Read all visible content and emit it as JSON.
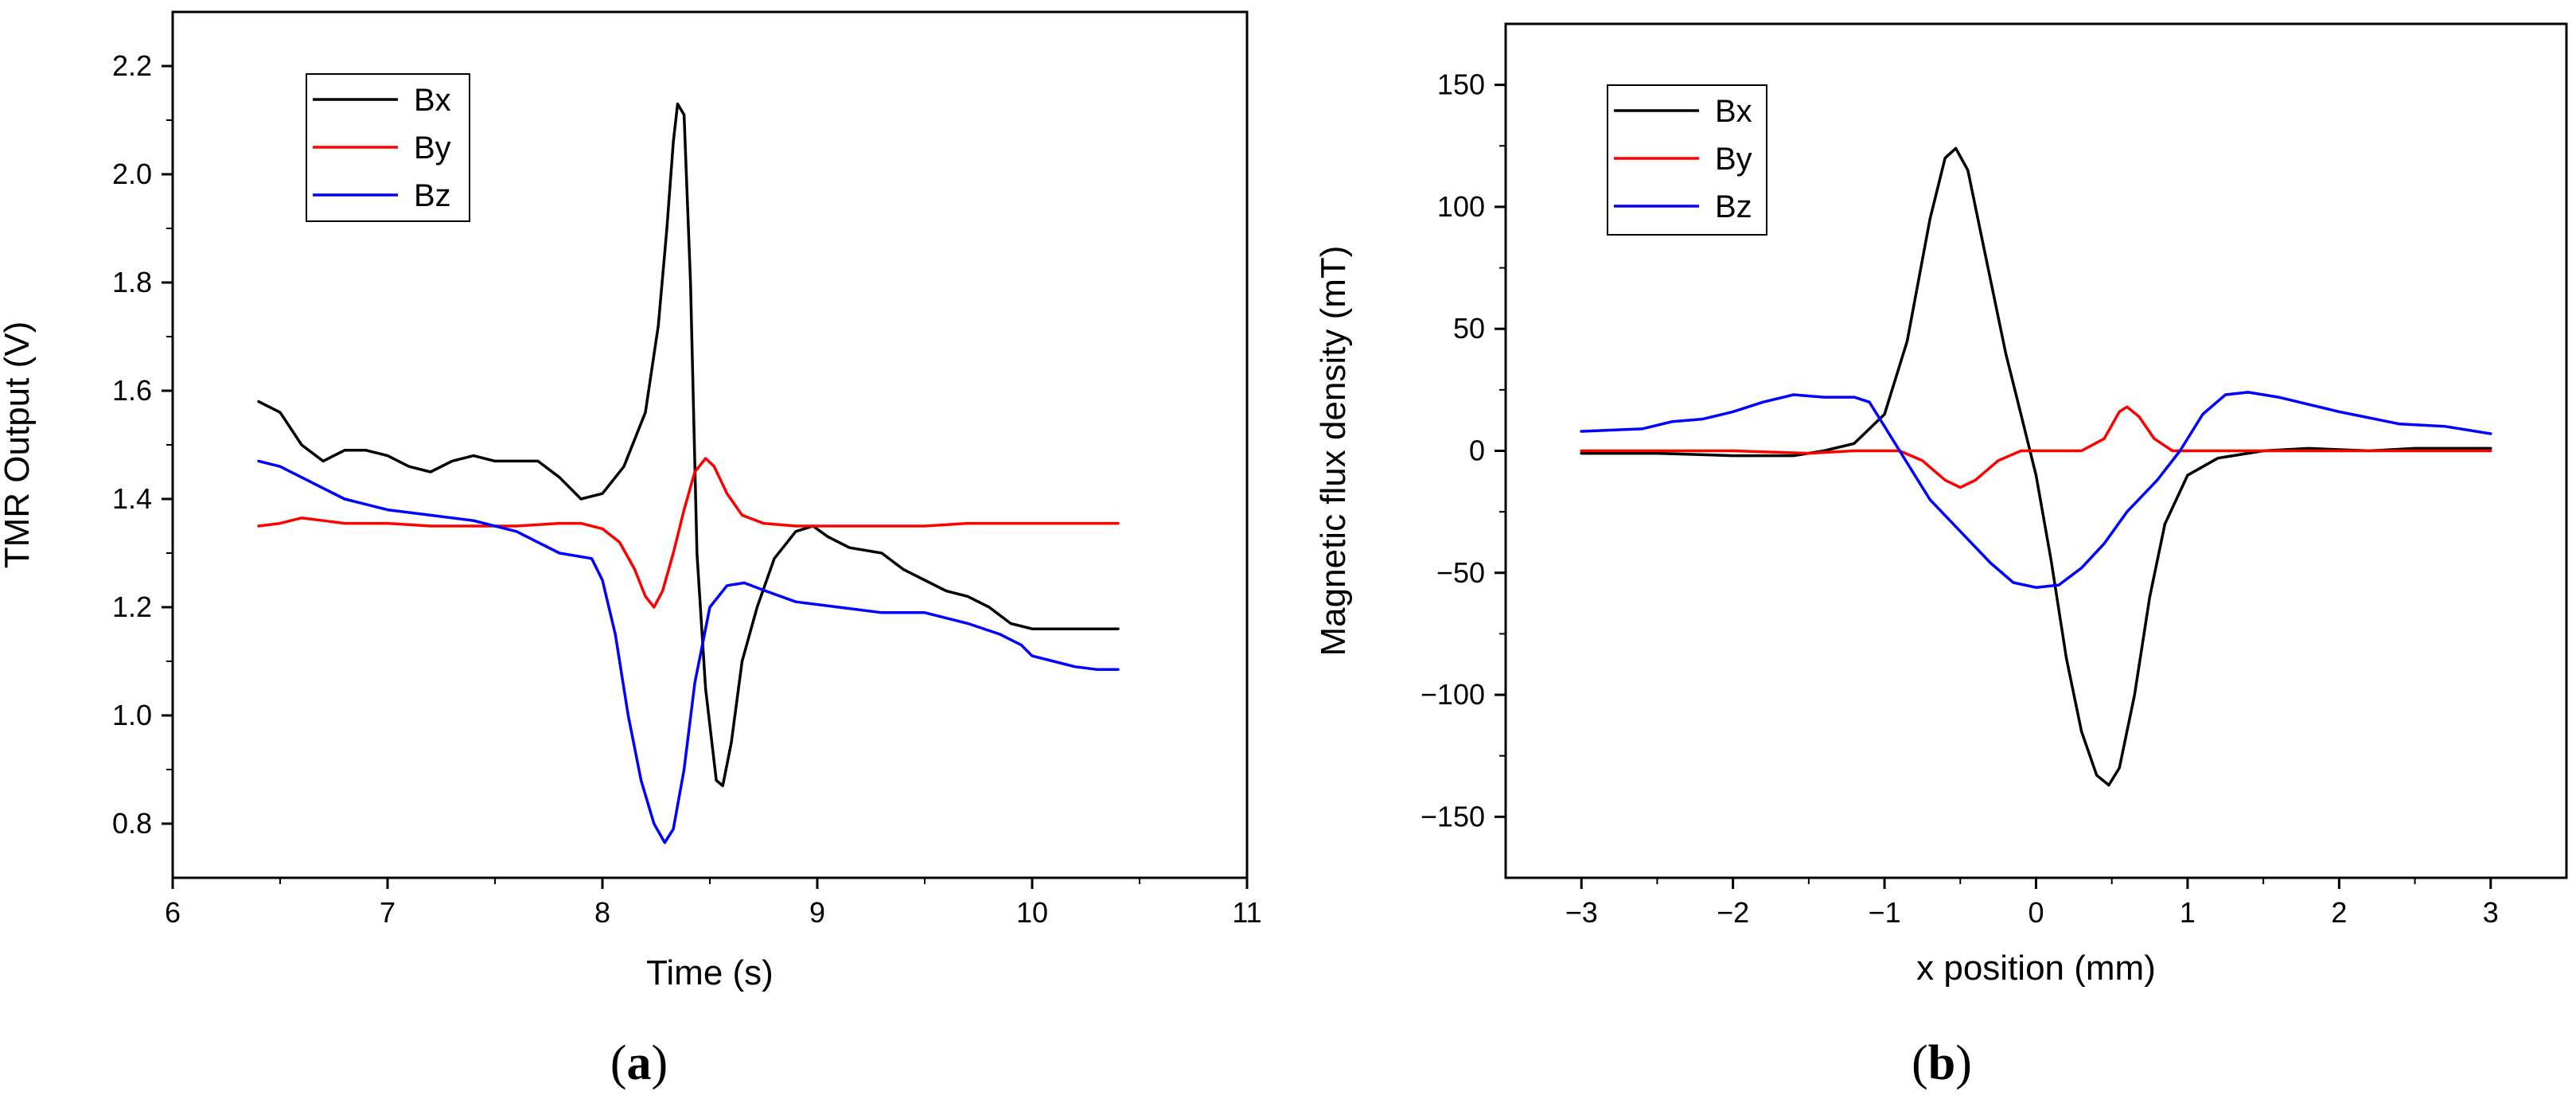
{
  "chart_data": [
    {
      "type": "line",
      "panel_label": "a",
      "title": "",
      "xlabel": "Time (s)",
      "ylabel": "TMR Output (V)",
      "xlim": [
        6,
        11
      ],
      "ylim": [
        0.7,
        2.3
      ],
      "x_ticks": [
        6,
        7,
        8,
        9,
        10,
        11
      ],
      "x_tick_labels": [
        "6",
        "7",
        "8",
        "9",
        "10",
        "11"
      ],
      "y_ticks": [
        0.8,
        1.0,
        1.2,
        1.4,
        1.6,
        1.8,
        2.0,
        2.2
      ],
      "y_tick_labels": [
        "0.8",
        "1.0",
        "1.2",
        "1.4",
        "1.6",
        "1.8",
        "2.0",
        "2.2"
      ],
      "legend_position": "top-left",
      "grid": false,
      "series": [
        {
          "name": "Bx",
          "color": "#000000",
          "points": [
            [
              6.4,
              1.58
            ],
            [
              6.5,
              1.56
            ],
            [
              6.6,
              1.5
            ],
            [
              6.7,
              1.47
            ],
            [
              6.8,
              1.49
            ],
            [
              6.9,
              1.49
            ],
            [
              7.0,
              1.48
            ],
            [
              7.1,
              1.46
            ],
            [
              7.2,
              1.45
            ],
            [
              7.3,
              1.47
            ],
            [
              7.4,
              1.48
            ],
            [
              7.5,
              1.47
            ],
            [
              7.6,
              1.47
            ],
            [
              7.7,
              1.47
            ],
            [
              7.8,
              1.44
            ],
            [
              7.9,
              1.4
            ],
            [
              8.0,
              1.41
            ],
            [
              8.1,
              1.46
            ],
            [
              8.2,
              1.56
            ],
            [
              8.26,
              1.72
            ],
            [
              8.3,
              1.9
            ],
            [
              8.33,
              2.06
            ],
            [
              8.35,
              2.13
            ],
            [
              8.38,
              2.11
            ],
            [
              8.41,
              1.8
            ],
            [
              8.44,
              1.3
            ],
            [
              8.48,
              1.05
            ],
            [
              8.53,
              0.88
            ],
            [
              8.56,
              0.87
            ],
            [
              8.6,
              0.95
            ],
            [
              8.65,
              1.1
            ],
            [
              8.72,
              1.2
            ],
            [
              8.8,
              1.29
            ],
            [
              8.9,
              1.34
            ],
            [
              8.98,
              1.35
            ],
            [
              9.05,
              1.33
            ],
            [
              9.15,
              1.31
            ],
            [
              9.3,
              1.3
            ],
            [
              9.4,
              1.27
            ],
            [
              9.5,
              1.25
            ],
            [
              9.6,
              1.23
            ],
            [
              9.7,
              1.22
            ],
            [
              9.8,
              1.2
            ],
            [
              9.9,
              1.17
            ],
            [
              10.0,
              1.16
            ],
            [
              10.2,
              1.16
            ],
            [
              10.4,
              1.16
            ]
          ]
        },
        {
          "name": "By",
          "color": "#ff0000",
          "points": [
            [
              6.4,
              1.35
            ],
            [
              6.5,
              1.355
            ],
            [
              6.6,
              1.365
            ],
            [
              6.7,
              1.36
            ],
            [
              6.8,
              1.355
            ],
            [
              6.9,
              1.355
            ],
            [
              7.0,
              1.355
            ],
            [
              7.2,
              1.35
            ],
            [
              7.4,
              1.35
            ],
            [
              7.6,
              1.35
            ],
            [
              7.8,
              1.355
            ],
            [
              7.9,
              1.355
            ],
            [
              8.0,
              1.345
            ],
            [
              8.08,
              1.32
            ],
            [
              8.15,
              1.27
            ],
            [
              8.2,
              1.22
            ],
            [
              8.24,
              1.2
            ],
            [
              8.28,
              1.23
            ],
            [
              8.33,
              1.3
            ],
            [
              8.38,
              1.38
            ],
            [
              8.43,
              1.45
            ],
            [
              8.48,
              1.475
            ],
            [
              8.52,
              1.46
            ],
            [
              8.58,
              1.41
            ],
            [
              8.65,
              1.37
            ],
            [
              8.75,
              1.355
            ],
            [
              8.9,
              1.35
            ],
            [
              9.2,
              1.35
            ],
            [
              9.5,
              1.35
            ],
            [
              9.7,
              1.355
            ],
            [
              10.0,
              1.355
            ],
            [
              10.4,
              1.355
            ]
          ]
        },
        {
          "name": "Bz",
          "color": "#0000ff",
          "points": [
            [
              6.4,
              1.47
            ],
            [
              6.5,
              1.46
            ],
            [
              6.6,
              1.44
            ],
            [
              6.7,
              1.42
            ],
            [
              6.8,
              1.4
            ],
            [
              6.9,
              1.39
            ],
            [
              7.0,
              1.38
            ],
            [
              7.2,
              1.37
            ],
            [
              7.4,
              1.36
            ],
            [
              7.6,
              1.34
            ],
            [
              7.7,
              1.32
            ],
            [
              7.8,
              1.3
            ],
            [
              7.95,
              1.29
            ],
            [
              8.0,
              1.25
            ],
            [
              8.06,
              1.15
            ],
            [
              8.12,
              1.0
            ],
            [
              8.18,
              0.88
            ],
            [
              8.24,
              0.8
            ],
            [
              8.29,
              0.765
            ],
            [
              8.33,
              0.79
            ],
            [
              8.38,
              0.9
            ],
            [
              8.43,
              1.06
            ],
            [
              8.5,
              1.2
            ],
            [
              8.58,
              1.24
            ],
            [
              8.66,
              1.245
            ],
            [
              8.76,
              1.23
            ],
            [
              8.9,
              1.21
            ],
            [
              9.1,
              1.2
            ],
            [
              9.3,
              1.19
            ],
            [
              9.5,
              1.19
            ],
            [
              9.7,
              1.17
            ],
            [
              9.85,
              1.15
            ],
            [
              9.95,
              1.13
            ],
            [
              10.0,
              1.11
            ],
            [
              10.1,
              1.1
            ],
            [
              10.2,
              1.09
            ],
            [
              10.3,
              1.085
            ],
            [
              10.4,
              1.085
            ]
          ]
        }
      ]
    },
    {
      "type": "line",
      "panel_label": "b",
      "title": "",
      "xlabel": "x position (mm)",
      "ylabel": "Magnetic flux density (mT)",
      "xlim": [
        -3.5,
        3.5
      ],
      "ylim": [
        -175,
        175
      ],
      "x_ticks": [
        -3,
        -2,
        -1,
        0,
        1,
        2,
        3
      ],
      "x_tick_labels": [
        "−3",
        "−2",
        "−1",
        "0",
        "1",
        "2",
        "3"
      ],
      "y_ticks": [
        -150,
        -100,
        -50,
        0,
        50,
        100,
        150
      ],
      "y_tick_labels": [
        "−150",
        "−100",
        "−50",
        "0",
        "50",
        "100",
        "150"
      ],
      "legend_position": "top-left",
      "grid": false,
      "series": [
        {
          "name": "Bx",
          "color": "#000000",
          "points": [
            [
              -3,
              -1
            ],
            [
              -2.5,
              -1
            ],
            [
              -2,
              -2
            ],
            [
              -1.6,
              -2
            ],
            [
              -1.4,
              0
            ],
            [
              -1.2,
              3
            ],
            [
              -1.0,
              15
            ],
            [
              -0.85,
              45
            ],
            [
              -0.7,
              95
            ],
            [
              -0.6,
              120
            ],
            [
              -0.53,
              124
            ],
            [
              -0.45,
              115
            ],
            [
              -0.35,
              85
            ],
            [
              -0.2,
              40
            ],
            [
              -0.1,
              15
            ],
            [
              0.0,
              -10
            ],
            [
              0.1,
              -45
            ],
            [
              0.2,
              -85
            ],
            [
              0.3,
              -115
            ],
            [
              0.4,
              -133
            ],
            [
              0.48,
              -137
            ],
            [
              0.55,
              -130
            ],
            [
              0.65,
              -100
            ],
            [
              0.75,
              -60
            ],
            [
              0.85,
              -30
            ],
            [
              1.0,
              -10
            ],
            [
              1.2,
              -3
            ],
            [
              1.5,
              0
            ],
            [
              1.8,
              1
            ],
            [
              2.2,
              0
            ],
            [
              2.5,
              1
            ],
            [
              3.0,
              1
            ]
          ]
        },
        {
          "name": "By",
          "color": "#ff0000",
          "points": [
            [
              -3,
              0
            ],
            [
              -2.5,
              0
            ],
            [
              -2.0,
              0
            ],
            [
              -1.5,
              -1
            ],
            [
              -1.2,
              0
            ],
            [
              -0.9,
              0
            ],
            [
              -0.75,
              -4
            ],
            [
              -0.6,
              -12
            ],
            [
              -0.5,
              -15
            ],
            [
              -0.4,
              -12
            ],
            [
              -0.25,
              -4
            ],
            [
              -0.1,
              0
            ],
            [
              0.0,
              0
            ],
            [
              0.3,
              0
            ],
            [
              0.45,
              5
            ],
            [
              0.55,
              16
            ],
            [
              0.6,
              18
            ],
            [
              0.68,
              14
            ],
            [
              0.78,
              5
            ],
            [
              0.9,
              0
            ],
            [
              1.2,
              0
            ],
            [
              1.5,
              0
            ],
            [
              2.0,
              0
            ],
            [
              3.0,
              0
            ]
          ]
        },
        {
          "name": "Bz",
          "color": "#0000ff",
          "points": [
            [
              -3,
              8
            ],
            [
              -2.6,
              9
            ],
            [
              -2.4,
              12
            ],
            [
              -2.2,
              13
            ],
            [
              -2.0,
              16
            ],
            [
              -1.8,
              20
            ],
            [
              -1.6,
              23
            ],
            [
              -1.4,
              22
            ],
            [
              -1.2,
              22
            ],
            [
              -1.1,
              20
            ],
            [
              -1.0,
              10
            ],
            [
              -0.85,
              -5
            ],
            [
              -0.7,
              -20
            ],
            [
              -0.5,
              -33
            ],
            [
              -0.3,
              -46
            ],
            [
              -0.15,
              -54
            ],
            [
              0.0,
              -56
            ],
            [
              0.15,
              -55
            ],
            [
              0.3,
              -48
            ],
            [
              0.45,
              -38
            ],
            [
              0.6,
              -25
            ],
            [
              0.8,
              -12
            ],
            [
              0.95,
              0
            ],
            [
              1.1,
              15
            ],
            [
              1.25,
              23
            ],
            [
              1.4,
              24
            ],
            [
              1.6,
              22
            ],
            [
              2.0,
              16
            ],
            [
              2.4,
              11
            ],
            [
              2.7,
              10
            ],
            [
              3.0,
              7
            ]
          ]
        }
      ]
    }
  ]
}
